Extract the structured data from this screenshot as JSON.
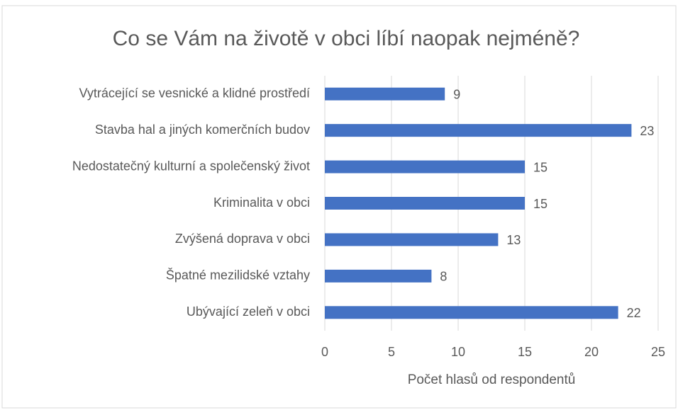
{
  "chart_data": {
    "type": "bar",
    "orientation": "horizontal",
    "title": "Co se Vám na životě v obci líbí naopak nejméně?",
    "x_label": "Počet hlasů od respondentů",
    "categories": [
      "Vytrácející se vesnické a klidné prostředí",
      "Stavba hal a jiných komerčních budov",
      "Nedostatečný kulturní a společenský život",
      "Kriminalita v obci",
      "Zvýšená doprava v obci",
      "Špatné mezilidské vztahy",
      "Ubývající zeleň v obci"
    ],
    "values": [
      9,
      23,
      15,
      15,
      13,
      8,
      22
    ],
    "color": "#4472c4",
    "xlim": [
      0,
      25
    ],
    "xticks": [
      0,
      5,
      10,
      15,
      20,
      25
    ],
    "grid": true
  }
}
